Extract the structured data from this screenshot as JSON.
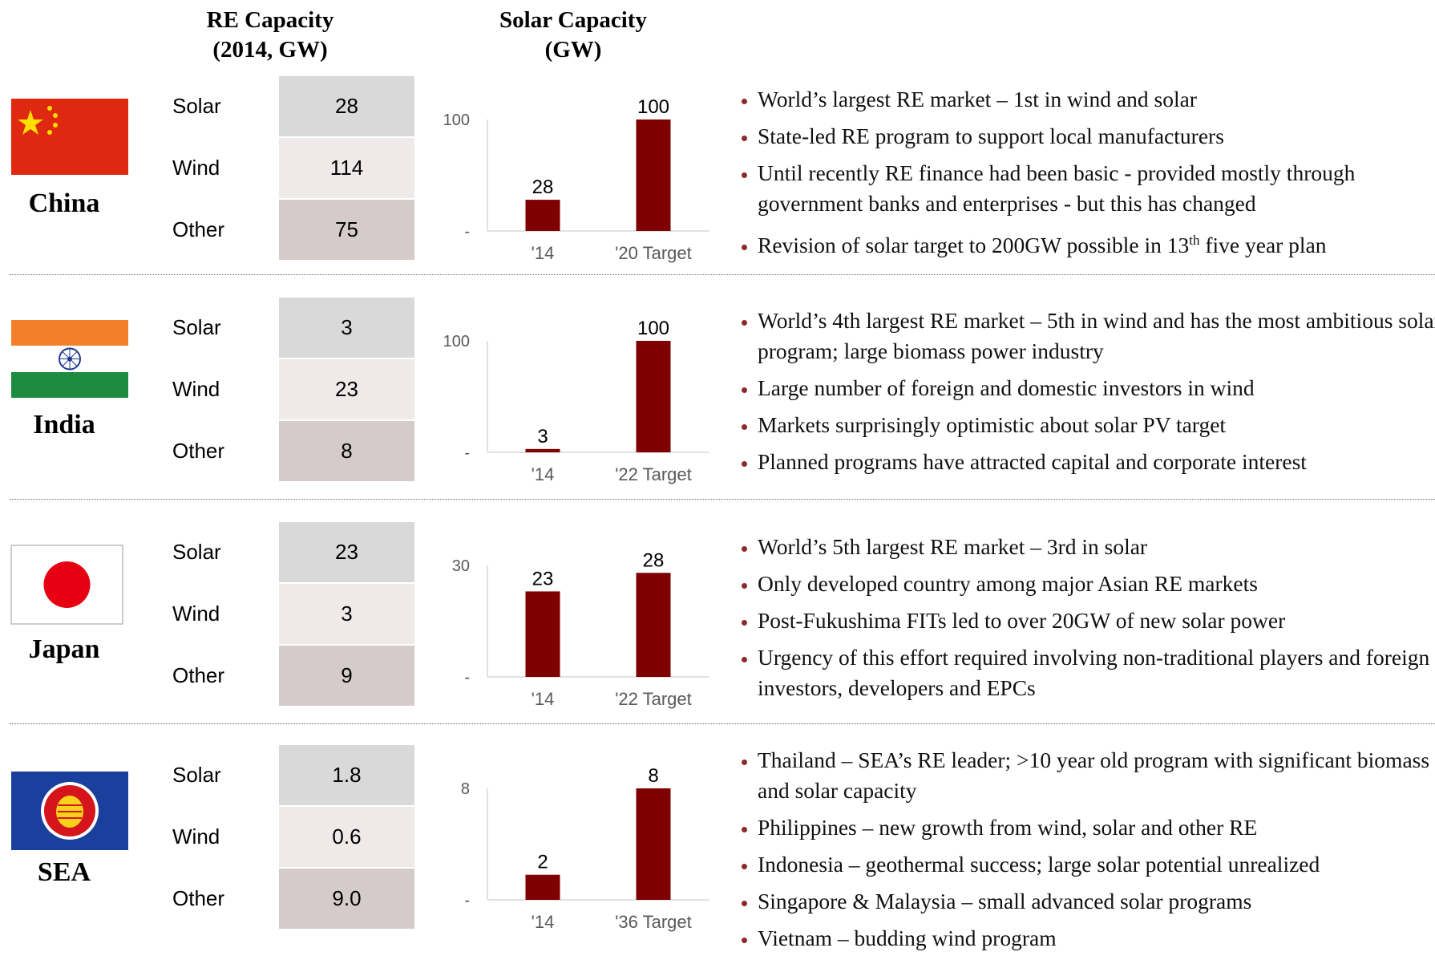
{
  "header": {
    "table_title": [
      "RE Capacity",
      "(2014, GW)"
    ],
    "chart_title": [
      "Solar Capacity",
      "(GW)"
    ]
  },
  "regions": [
    {
      "name": "China",
      "table": {
        "rows": [
          [
            "Solar",
            "28"
          ],
          [
            "Wind",
            "114"
          ],
          [
            "Other",
            "75"
          ]
        ]
      },
      "bullets": [
        "World’s largest RE market – 1st in wind and solar",
        "State-led RE program to support local manufacturers",
        "Until recently RE finance had been basic - provided mostly through government banks and enterprises -  but this has changed",
        {
          "text": "Revision of solar target to 200GW possible in 13",
          "sup": "th",
          "after": " five year plan"
        }
      ]
    },
    {
      "name": "India",
      "table": {
        "rows": [
          [
            "Solar",
            "3"
          ],
          [
            "Wind",
            "23"
          ],
          [
            "Other",
            "8"
          ]
        ]
      },
      "bullets": [
        "World’s 4th largest RE market – 5th in wind and has the most ambitious solar program; large biomass power industry",
        "Large number of foreign and domestic investors in wind",
        "Markets surprisingly optimistic about solar PV target",
        "Planned programs have attracted capital and corporate interest"
      ]
    },
    {
      "name": "Japan",
      "table": {
        "rows": [
          [
            "Solar",
            "23"
          ],
          [
            "Wind",
            "3"
          ],
          [
            "Other",
            "9"
          ]
        ]
      },
      "bullets": [
        "World’s 5th largest RE market – 3rd in solar",
        "Only developed country among major Asian RE markets",
        "Post-Fukushima FITs led to over 20GW of new solar power",
        "Urgency of this effort required involving non-traditional players and foreign investors, developers and EPCs"
      ]
    },
    {
      "name": "SEA",
      "table": {
        "rows": [
          [
            "Solar",
            "1.8"
          ],
          [
            "Wind",
            "0.6"
          ],
          [
            "Other",
            "9.0"
          ]
        ]
      },
      "bullets": [
        "Thailand – SEA’s RE leader; >10 year old program with significant biomass and solar capacity",
        "Philippines – new growth from wind, solar and other RE",
        "Indonesia – geothermal success; large solar potential unrealized",
        "Singapore & Malaysia – small advanced solar programs",
        "Vietnam – budding wind program"
      ]
    }
  ],
  "chart_data": [
    {
      "type": "bar",
      "categories": [
        "'14",
        "'20 Target"
      ],
      "values": [
        28,
        100
      ],
      "color": "#7f0000",
      "ylim": [
        0,
        100
      ],
      "yticks": [
        {
          "value": 0,
          "label": "-"
        },
        100
      ]
    },
    {
      "type": "bar",
      "categories": [
        "'14",
        "'22 Target"
      ],
      "values": [
        3,
        100
      ],
      "color": "#7f0000",
      "ylim": [
        0,
        100
      ],
      "yticks": [
        {
          "value": 0,
          "label": "-"
        },
        100
      ]
    },
    {
      "type": "bar",
      "categories": [
        "'14",
        "'22 Target"
      ],
      "values": [
        23,
        28
      ],
      "color": "#7f0000",
      "ylim": [
        0,
        30
      ],
      "yticks": [
        {
          "value": 0,
          "label": "-"
        },
        30
      ]
    },
    {
      "type": "bar",
      "categories": [
        "'14",
        "'36 Target"
      ],
      "values": [
        1.8,
        8
      ],
      "value_labels": [
        "2",
        "8"
      ],
      "color": "#7f0000",
      "ylim": [
        0,
        8
      ],
      "yticks": [
        {
          "value": 0,
          "label": "-"
        },
        8
      ]
    }
  ]
}
